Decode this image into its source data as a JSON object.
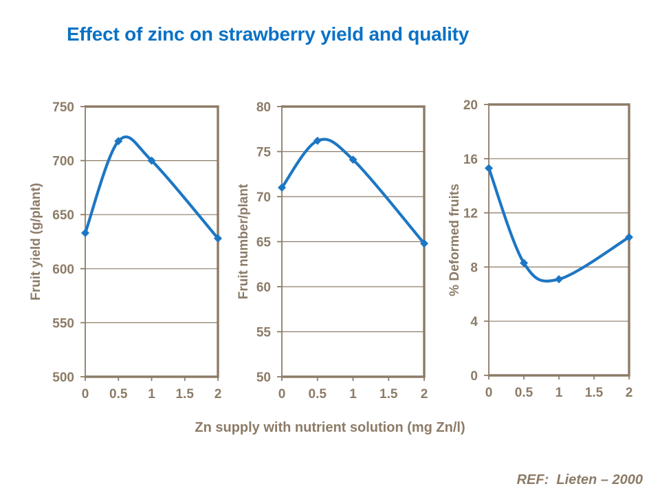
{
  "slide": {
    "title": "Effect of zinc on strawberry yield and quality",
    "x_axis_title": "Zn supply with nutrient solution (mg Zn/l)",
    "reference": "REF:  Lieten – 2000"
  },
  "colors": {
    "title_blue": "#0a71c5",
    "line_blue": "#1d76c4",
    "axis_brown": "#8c7b67",
    "background": "#ffffff"
  },
  "chart_data": [
    {
      "type": "line",
      "id": "fruit-yield",
      "ylabel": "Fruit yield  (g/plant)",
      "x": [
        0,
        0.5,
        1,
        2
      ],
      "values": [
        633,
        718,
        700,
        628
      ],
      "xticks": [
        0,
        0.5,
        1,
        1.5,
        2
      ],
      "yticks": [
        500,
        550,
        600,
        650,
        700,
        750
      ],
      "xlim": [
        0,
        2
      ],
      "ylim": [
        500,
        750
      ],
      "grid": true,
      "legend": "none",
      "marker": "diamond"
    },
    {
      "type": "line",
      "id": "fruit-number",
      "ylabel": "Fruit number/plant",
      "x": [
        0,
        0.5,
        1,
        2
      ],
      "values": [
        71,
        76.2,
        74.1,
        64.8
      ],
      "xticks": [
        0,
        0.5,
        1,
        1.5,
        2
      ],
      "yticks": [
        50,
        55,
        60,
        65,
        70,
        75,
        80
      ],
      "xlim": [
        0,
        2
      ],
      "ylim": [
        50,
        80
      ],
      "grid": true,
      "legend": "none",
      "marker": "diamond"
    },
    {
      "type": "line",
      "id": "deformed-fruits",
      "ylabel": "% Deformed fruits",
      "x": [
        0,
        0.5,
        1,
        2
      ],
      "values": [
        15.3,
        8.3,
        7.1,
        10.2
      ],
      "xticks": [
        0,
        0.5,
        1,
        1.5,
        2
      ],
      "yticks": [
        0,
        4,
        8,
        12,
        16,
        20
      ],
      "xlim": [
        0,
        2
      ],
      "ylim": [
        0,
        20
      ],
      "grid": true,
      "legend": "none",
      "marker": "diamond"
    }
  ]
}
